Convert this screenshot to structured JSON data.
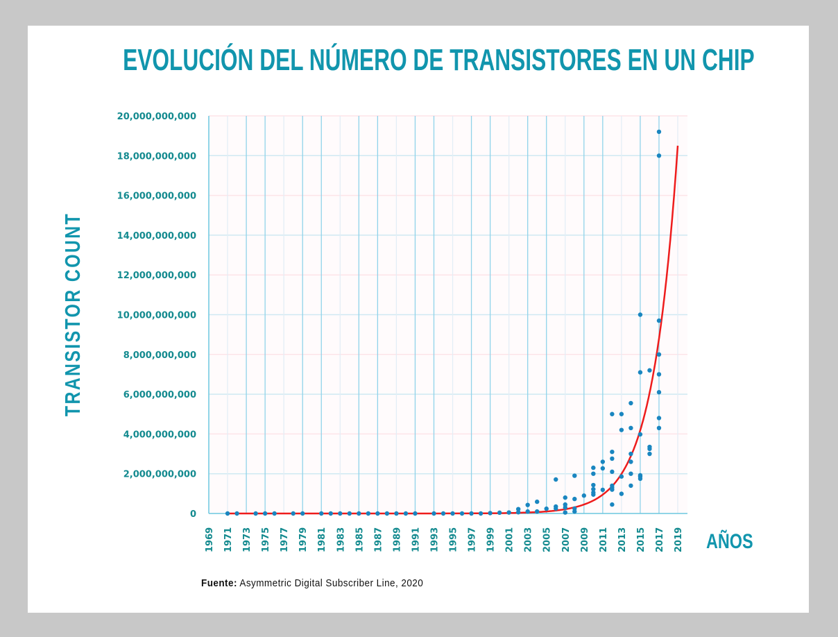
{
  "title": "EVOLUCIÓN DEL NÚMERO DE TRANSISTORES EN UN CHIP",
  "source_label": "Fuente:",
  "source_text": "Asymmetric Digital Subscriber Line, 2020",
  "colors": {
    "accent": "#1195ad",
    "points": "#1a86c0",
    "trend": "#ee1c1c",
    "grid": "#8fd3ea"
  },
  "chart_data": {
    "type": "scatter",
    "title": "EVOLUCIÓN DEL NÚMERO DE TRANSISTORES EN UN CHIP",
    "xlabel": "AÑOS",
    "ylabel": "TRANSISTOR COUNT",
    "xlim": [
      1969,
      2019
    ],
    "ylim": [
      0,
      20000000000
    ],
    "xticks": [
      "1969",
      "1971",
      "1973",
      "1975",
      "1977",
      "1979",
      "1981",
      "1983",
      "1985",
      "1987",
      "1989",
      "1991",
      "1993",
      "1995",
      "1997",
      "1999",
      "2001",
      "2003",
      "2005",
      "2007",
      "2009",
      "2011",
      "2013",
      "2015",
      "2017",
      "2019"
    ],
    "yticks": [
      "0",
      "2,000,000,000",
      "4,000,000,000",
      "6,000,000,000",
      "8,000,000,000",
      "10,000,000,000",
      "12,000,000,000",
      "14,000,000,000",
      "16,000,000,000",
      "18,000,000,000",
      "20,000,000,000"
    ],
    "grid": true,
    "points": [
      [
        1971,
        0
      ],
      [
        1972,
        0
      ],
      [
        1974,
        0
      ],
      [
        1975,
        0
      ],
      [
        1976,
        0
      ],
      [
        1978,
        0
      ],
      [
        1979,
        0
      ],
      [
        1981,
        0
      ],
      [
        1982,
        0
      ],
      [
        1983,
        0
      ],
      [
        1984,
        0
      ],
      [
        1985,
        0
      ],
      [
        1986,
        0
      ],
      [
        1987,
        0
      ],
      [
        1988,
        0
      ],
      [
        1989,
        0
      ],
      [
        1990,
        0
      ],
      [
        1991,
        0
      ],
      [
        1993,
        0
      ],
      [
        1994,
        0
      ],
      [
        1995,
        0
      ],
      [
        1996,
        0
      ],
      [
        1997,
        0
      ],
      [
        1998,
        0
      ],
      [
        1999,
        20000000
      ],
      [
        2000,
        40000000
      ],
      [
        2001,
        50000000
      ],
      [
        2002,
        220000000
      ],
      [
        2002,
        60000000
      ],
      [
        2003,
        430000000
      ],
      [
        2003,
        100000000
      ],
      [
        2004,
        590000000
      ],
      [
        2004,
        100000000
      ],
      [
        2005,
        240000000
      ],
      [
        2006,
        1710000000
      ],
      [
        2006,
        350000000
      ],
      [
        2006,
        250000000
      ],
      [
        2007,
        800000000
      ],
      [
        2007,
        450000000
      ],
      [
        2007,
        300000000
      ],
      [
        2007,
        50000000
      ],
      [
        2008,
        1900000000
      ],
      [
        2008,
        730000000
      ],
      [
        2008,
        250000000
      ],
      [
        2008,
        100000000
      ],
      [
        2009,
        900000000
      ],
      [
        2010,
        2300000000
      ],
      [
        2010,
        2000000000
      ],
      [
        2010,
        1430000000
      ],
      [
        2010,
        1220000000
      ],
      [
        2010,
        1050000000
      ],
      [
        2010,
        950000000
      ],
      [
        2011,
        2600000000
      ],
      [
        2011,
        2270000000
      ],
      [
        2011,
        1190000000
      ],
      [
        2012,
        5000000000
      ],
      [
        2012,
        3100000000
      ],
      [
        2012,
        2760000000
      ],
      [
        2012,
        2100000000
      ],
      [
        2012,
        1400000000
      ],
      [
        2012,
        1300000000
      ],
      [
        2012,
        1200000000
      ],
      [
        2012,
        450000000
      ],
      [
        2013,
        5000000000
      ],
      [
        2013,
        4200000000
      ],
      [
        2013,
        1860000000
      ],
      [
        2013,
        990000000
      ],
      [
        2014,
        5550000000
      ],
      [
        2014,
        4300000000
      ],
      [
        2014,
        3000000000
      ],
      [
        2014,
        2600000000
      ],
      [
        2014,
        2000000000
      ],
      [
        2014,
        1400000000
      ],
      [
        2015,
        10000000000
      ],
      [
        2015,
        7100000000
      ],
      [
        2015,
        3980000000
      ],
      [
        2015,
        1920000000
      ],
      [
        2015,
        1850000000
      ],
      [
        2015,
        1750000000
      ],
      [
        2016,
        7200000000
      ],
      [
        2016,
        3350000000
      ],
      [
        2016,
        3250000000
      ],
      [
        2016,
        3000000000
      ],
      [
        2017,
        19200000000
      ],
      [
        2017,
        18000000000
      ],
      [
        2017,
        9700000000
      ],
      [
        2017,
        8000000000
      ],
      [
        2017,
        7000000000
      ],
      [
        2017,
        6100000000
      ],
      [
        2017,
        4800000000
      ],
      [
        2017,
        4300000000
      ]
    ],
    "trendline": {
      "type": "exponential",
      "value_at_2019": 18500000000,
      "annual_growth_factor": 1.45
    }
  }
}
